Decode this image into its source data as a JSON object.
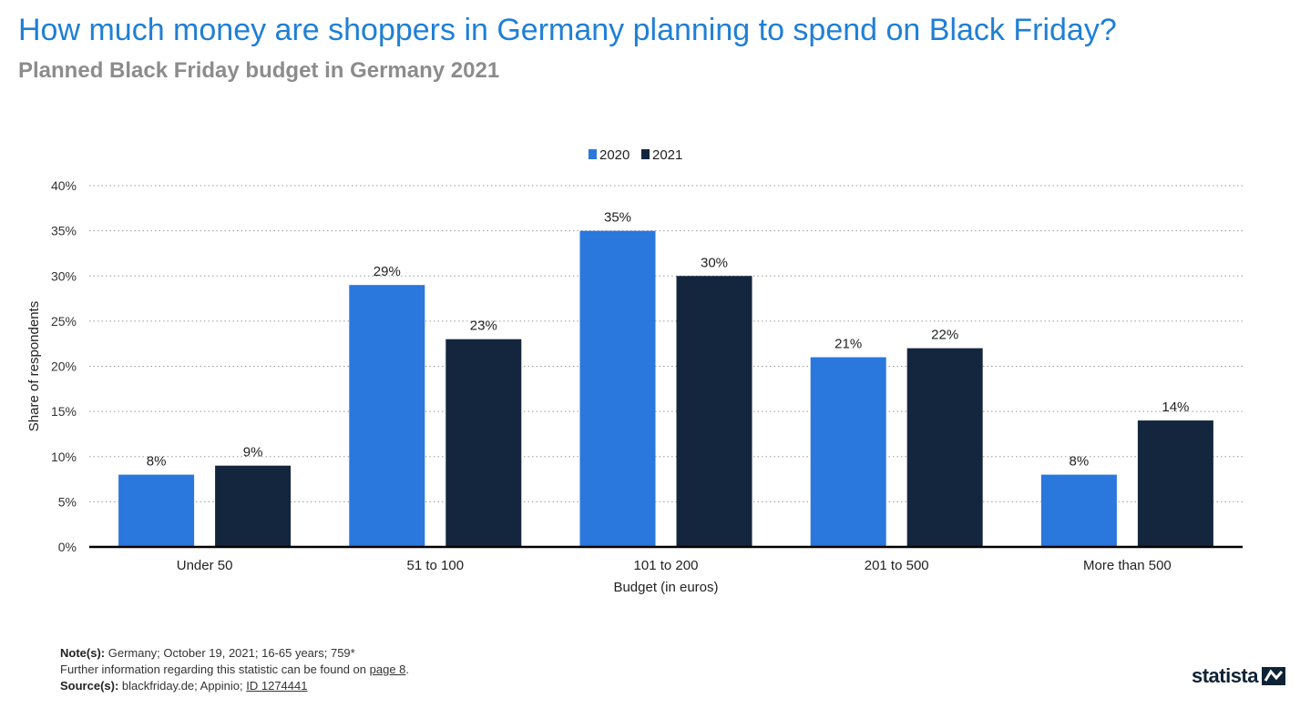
{
  "title": "How much money are shoppers in Germany planning to spend on Black Friday?",
  "subtitle": "Planned Black Friday budget in Germany 2021",
  "chart_data": {
    "type": "bar",
    "categories": [
      "Under 50",
      "51 to 100",
      "101 to 200",
      "201 to 500",
      "More than 500"
    ],
    "series": [
      {
        "name": "2020",
        "values": [
          8,
          29,
          35,
          21,
          8
        ],
        "color": "#2a77dd"
      },
      {
        "name": "2021",
        "values": [
          9,
          23,
          30,
          22,
          14
        ],
        "color": "#13263d"
      }
    ],
    "xlabel": "Budget (in euros)",
    "ylabel": "Share of respondents",
    "ylim": [
      0,
      40
    ],
    "yticks": [
      0,
      5,
      10,
      15,
      20,
      25,
      30,
      35,
      40
    ],
    "value_suffix": "%",
    "grid": true,
    "legend": "top-center"
  },
  "footer": {
    "notes_label": "Note(s):",
    "notes_text": " Germany; October 19, 2021; 16-65 years; 759*",
    "info_text": "Further information regarding this statistic can be found on ",
    "info_link": "page 8",
    "info_end": ".",
    "source_label": "Source(s):",
    "source_text": " blackfriday.de; Appinio; ",
    "source_link": "ID 1274441"
  },
  "logo": {
    "text": "statista",
    "icon": "statista-flag-icon"
  }
}
